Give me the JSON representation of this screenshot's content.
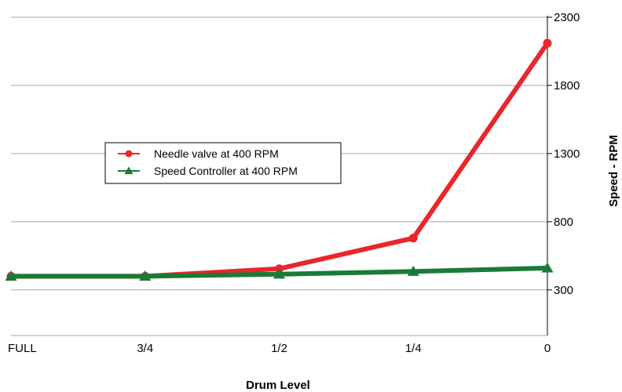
{
  "chart_data": {
    "type": "line",
    "title": "",
    "xlabel": "Drum Level",
    "ylabel": "Speed - RPM",
    "categories": [
      "FULL",
      "3/4",
      "1/2",
      "1/4",
      "0"
    ],
    "ylim": [
      -35,
      2300
    ],
    "yticks": [
      300,
      800,
      1300,
      1800,
      2300
    ],
    "grid": true,
    "legend_position": "center-left",
    "series": [
      {
        "name": "Needle valve at 400 RPM",
        "values": [
          400,
          400,
          455,
          680,
          2110
        ],
        "color": "#e8262b",
        "marker": "circle"
      },
      {
        "name": "Speed Controller at 400 RPM",
        "values": [
          400,
          400,
          415,
          435,
          460
        ],
        "color": "#1a7a36",
        "marker": "triangle"
      }
    ]
  }
}
